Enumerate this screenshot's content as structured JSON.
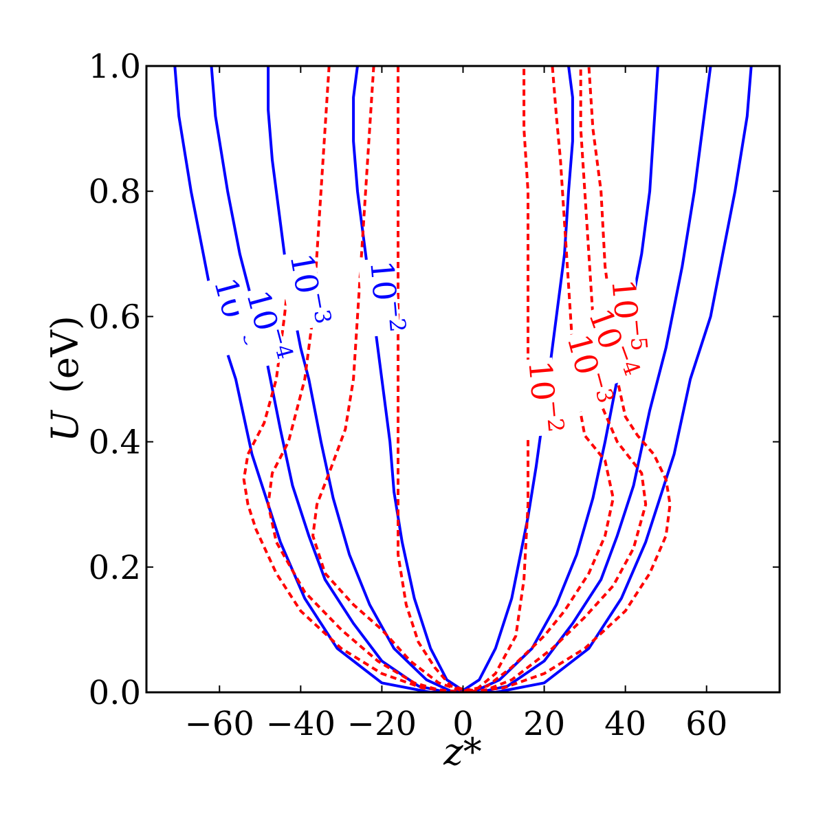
{
  "chart_data": {
    "type": "line",
    "title": "",
    "xlabel": "z*",
    "ylabel_symbol": "U",
    "ylabel_unit": "(eV)",
    "xlim": [
      -78,
      78
    ],
    "ylim": [
      0.0,
      1.0
    ],
    "xticks": [
      -60,
      -40,
      -20,
      0,
      20,
      40,
      60
    ],
    "xtick_labels": [
      "−60",
      "−40",
      "−20",
      "0",
      "20",
      "40",
      "60"
    ],
    "yticks": [
      0.0,
      0.2,
      0.4,
      0.6,
      0.8,
      1.0
    ],
    "ytick_labels": [
      "0.0",
      "0.2",
      "0.4",
      "0.6",
      "0.8",
      "1.0"
    ],
    "grid": false,
    "colors": {
      "solid": "#0000ff",
      "dashed": "#ff0000",
      "axis": "#000000"
    },
    "label_base": "10",
    "series": [
      {
        "group": "solid",
        "style": "solid",
        "level_exponent": "−2",
        "points": [
          [
            -26,
            1.0
          ],
          [
            -27,
            0.95
          ],
          [
            -27,
            0.88
          ],
          [
            -26,
            0.8
          ],
          [
            -24,
            0.7
          ],
          [
            -22,
            0.6
          ],
          [
            -20,
            0.5
          ],
          [
            -18,
            0.4
          ],
          [
            -17,
            0.32
          ],
          [
            -15,
            0.24
          ],
          [
            -12,
            0.15
          ],
          [
            -8,
            0.07
          ],
          [
            -4,
            0.02
          ],
          [
            0,
            0.003
          ],
          [
            4,
            0.02
          ],
          [
            8,
            0.07
          ],
          [
            12,
            0.15
          ],
          [
            16,
            0.28
          ],
          [
            18,
            0.36
          ],
          [
            21,
            0.5
          ],
          [
            23,
            0.6
          ],
          [
            25,
            0.7
          ],
          [
            26,
            0.8
          ],
          [
            27,
            0.88
          ],
          [
            27,
            0.95
          ],
          [
            26,
            1.0
          ]
        ]
      },
      {
        "group": "solid",
        "style": "solid",
        "level_exponent": "−3",
        "points": [
          [
            -48,
            1.0
          ],
          [
            -48,
            0.93
          ],
          [
            -47,
            0.85
          ],
          [
            -45,
            0.75
          ],
          [
            -43,
            0.65
          ],
          [
            -40,
            0.55
          ],
          [
            -38,
            0.5
          ],
          [
            -35,
            0.4
          ],
          [
            -32,
            0.31
          ],
          [
            -28,
            0.22
          ],
          [
            -23,
            0.14
          ],
          [
            -17,
            0.07
          ],
          [
            -9,
            0.02
          ],
          [
            -3,
            0.002
          ],
          [
            3,
            0.002
          ],
          [
            9,
            0.02
          ],
          [
            17,
            0.07
          ],
          [
            23,
            0.14
          ],
          [
            28,
            0.22
          ],
          [
            32,
            0.31
          ],
          [
            35,
            0.4
          ],
          [
            38,
            0.5
          ],
          [
            41,
            0.6
          ],
          [
            44,
            0.7
          ],
          [
            46,
            0.8
          ],
          [
            47,
            0.9
          ],
          [
            48,
            1.0
          ]
        ]
      },
      {
        "group": "solid",
        "style": "solid",
        "level_exponent": "−4",
        "points": [
          [
            -62,
            1.0
          ],
          [
            -61,
            0.92
          ],
          [
            -58,
            0.8
          ],
          [
            -55,
            0.7
          ],
          [
            -51,
            0.6
          ],
          [
            -49,
            0.55
          ],
          [
            -45,
            0.42
          ],
          [
            -42,
            0.33
          ],
          [
            -38,
            0.25
          ],
          [
            -34,
            0.18
          ],
          [
            -27,
            0.11
          ],
          [
            -20,
            0.05
          ],
          [
            -11,
            0.01
          ],
          [
            -4,
            0.0
          ],
          [
            4,
            0.0
          ],
          [
            11,
            0.01
          ],
          [
            20,
            0.05
          ],
          [
            27,
            0.11
          ],
          [
            34,
            0.18
          ],
          [
            38,
            0.25
          ],
          [
            42,
            0.33
          ],
          [
            46,
            0.45
          ],
          [
            50,
            0.55
          ],
          [
            54,
            0.68
          ],
          [
            57,
            0.8
          ],
          [
            59,
            0.9
          ],
          [
            61,
            1.0
          ]
        ]
      },
      {
        "group": "solid",
        "style": "solid",
        "level_exponent": "−5",
        "points": [
          [
            -71,
            1.0
          ],
          [
            -70,
            0.92
          ],
          [
            -67,
            0.8
          ],
          [
            -64,
            0.7
          ],
          [
            -61,
            0.6
          ],
          [
            -56,
            0.5
          ],
          [
            -52,
            0.38
          ],
          [
            -49,
            0.32
          ],
          [
            -45,
            0.24
          ],
          [
            -39,
            0.15
          ],
          [
            -31,
            0.07
          ],
          [
            -20,
            0.015
          ],
          [
            -8,
            0.0
          ],
          [
            8,
            0.0
          ],
          [
            20,
            0.015
          ],
          [
            31,
            0.07
          ],
          [
            39,
            0.15
          ],
          [
            45,
            0.24
          ],
          [
            49,
            0.32
          ],
          [
            52,
            0.38
          ],
          [
            56,
            0.5
          ],
          [
            61,
            0.6
          ],
          [
            64,
            0.7
          ],
          [
            67,
            0.8
          ],
          [
            70,
            0.92
          ],
          [
            71,
            1.0
          ]
        ]
      },
      {
        "group": "dashed",
        "style": "dashed",
        "level_exponent": "−2",
        "points": [
          [
            -16,
            1.0
          ],
          [
            -16,
            0.9
          ],
          [
            -16,
            0.8
          ],
          [
            -16,
            0.7
          ],
          [
            -16,
            0.6
          ],
          [
            -16,
            0.5
          ],
          [
            -16,
            0.4
          ],
          [
            -16,
            0.3
          ],
          [
            -16,
            0.22
          ],
          [
            -14,
            0.14
          ],
          [
            -11,
            0.08
          ],
          [
            -7,
            0.04
          ],
          [
            -3,
            0.01
          ],
          [
            0,
            0.005
          ],
          [
            3,
            0.003
          ],
          [
            8,
            0.03
          ],
          [
            13,
            0.09
          ],
          [
            15,
            0.18
          ],
          [
            16,
            0.3
          ],
          [
            16,
            0.4
          ],
          [
            16,
            0.5
          ],
          [
            16,
            0.6
          ],
          [
            16,
            0.7
          ],
          [
            16,
            0.8
          ],
          [
            15,
            0.9
          ],
          [
            15,
            1.0
          ]
        ]
      },
      {
        "group": "dashed",
        "style": "dashed",
        "level_exponent": "−3",
        "points": [
          [
            -22,
            1.0
          ],
          [
            -23,
            0.9
          ],
          [
            -24,
            0.8
          ],
          [
            -25,
            0.7
          ],
          [
            -26,
            0.6
          ],
          [
            -27,
            0.5
          ],
          [
            -29,
            0.42
          ],
          [
            -33,
            0.35
          ],
          [
            -36,
            0.3
          ],
          [
            -37,
            0.25
          ],
          [
            -34,
            0.19
          ],
          [
            -27,
            0.14
          ],
          [
            -20,
            0.1
          ],
          [
            -13,
            0.05
          ],
          [
            -6,
            0.015
          ],
          [
            0,
            0.002
          ],
          [
            6,
            0.01
          ],
          [
            12,
            0.04
          ],
          [
            20,
            0.09
          ],
          [
            25,
            0.13
          ],
          [
            31,
            0.19
          ],
          [
            35,
            0.25
          ],
          [
            37,
            0.31
          ],
          [
            35,
            0.37
          ],
          [
            30,
            0.41
          ],
          [
            28,
            0.48
          ],
          [
            27,
            0.55
          ],
          [
            26,
            0.65
          ],
          [
            25,
            0.75
          ],
          [
            24,
            0.85
          ],
          [
            23,
            0.92
          ],
          [
            22,
            1.0
          ]
        ]
      },
      {
        "group": "dashed",
        "style": "dashed",
        "level_exponent": "−4",
        "points": [
          [
            -33,
            1.0
          ],
          [
            -34,
            0.9
          ],
          [
            -35,
            0.8
          ],
          [
            -36,
            0.7
          ],
          [
            -37,
            0.6
          ],
          [
            -39,
            0.5
          ],
          [
            -43,
            0.4
          ],
          [
            -47,
            0.35
          ],
          [
            -48,
            0.3
          ],
          [
            -46,
            0.24
          ],
          [
            -39,
            0.16
          ],
          [
            -30,
            0.1
          ],
          [
            -21,
            0.05
          ],
          [
            -12,
            0.015
          ],
          [
            -5,
            0.002
          ],
          [
            0,
            0.0
          ],
          [
            5,
            0.002
          ],
          [
            12,
            0.02
          ],
          [
            22,
            0.07
          ],
          [
            30,
            0.12
          ],
          [
            37,
            0.17
          ],
          [
            42,
            0.23
          ],
          [
            45,
            0.3
          ],
          [
            44,
            0.35
          ],
          [
            38,
            0.4
          ],
          [
            34,
            0.46
          ],
          [
            33,
            0.52
          ],
          [
            32,
            0.6
          ],
          [
            31,
            0.7
          ],
          [
            30,
            0.8
          ],
          [
            29,
            0.9
          ],
          [
            29,
            1.0
          ]
        ]
      },
      {
        "group": "dashed",
        "style": "dashed",
        "level_exponent": "−5",
        "points": [
          [
            -43,
            0.66
          ],
          [
            -44,
            0.6
          ],
          [
            -46,
            0.5
          ],
          [
            -49,
            0.43
          ],
          [
            -53,
            0.38
          ],
          [
            -54,
            0.34
          ],
          [
            -53,
            0.3
          ],
          [
            -51,
            0.26
          ],
          [
            -46,
            0.19
          ],
          [
            -40,
            0.13
          ],
          [
            -30,
            0.07
          ],
          [
            -20,
            0.03
          ],
          [
            -10,
            0.007
          ],
          [
            0,
            0.0
          ],
          [
            10,
            0.007
          ],
          [
            20,
            0.03
          ],
          [
            30,
            0.07
          ],
          [
            40,
            0.13
          ],
          [
            46,
            0.19
          ],
          [
            50,
            0.25
          ],
          [
            51,
            0.3
          ],
          [
            50,
            0.34
          ],
          [
            47,
            0.38
          ],
          [
            43,
            0.41
          ],
          [
            40,
            0.44
          ],
          [
            38,
            0.5
          ],
          [
            37,
            0.58
          ],
          [
            35,
            0.68
          ],
          [
            34,
            0.8
          ],
          [
            32,
            0.9
          ],
          [
            31,
            1.0
          ]
        ]
      }
    ],
    "labels": [
      {
        "group": "solid",
        "text_base": "10",
        "text_exp": "−5",
        "x": -59,
        "y": 0.6,
        "rot": 75
      },
      {
        "group": "solid",
        "text_base": "10",
        "text_exp": "−4",
        "x": -51,
        "y": 0.58,
        "rot": 75
      },
      {
        "group": "solid",
        "text_base": "10",
        "text_exp": "−3",
        "x": -41,
        "y": 0.64,
        "rot": 80
      },
      {
        "group": "solid",
        "text_base": "10",
        "text_exp": "−2",
        "x": -22,
        "y": 0.63,
        "rot": 85
      },
      {
        "group": "dashed",
        "text_base": "10",
        "text_exp": "−5",
        "x": 37.5,
        "y": 0.6,
        "rot": 85
      },
      {
        "group": "dashed",
        "text_base": "10",
        "text_exp": "−4",
        "x": 34,
        "y": 0.55,
        "rot": 70
      },
      {
        "group": "dashed",
        "text_base": "10",
        "text_exp": "−3",
        "x": 28,
        "y": 0.51,
        "rot": 75
      },
      {
        "group": "dashed",
        "text_base": "10",
        "text_exp": "−2",
        "x": 17,
        "y": 0.47,
        "rot": 85
      }
    ]
  }
}
